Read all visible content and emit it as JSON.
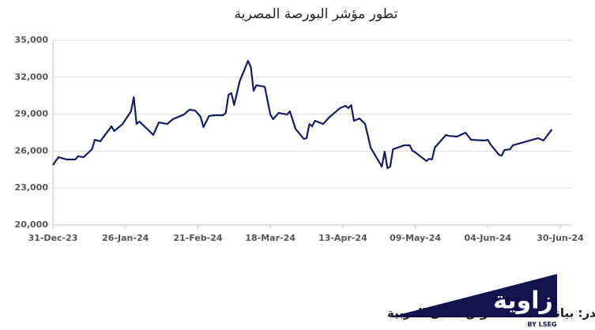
{
  "chart_data": {
    "type": "line",
    "title": "تطور مؤشر البورصة المصرية",
    "source": "المصدر: بيانات اتحاد أسواق المال العربية",
    "color": "#1b1b5c",
    "grid": true,
    "x": [
      "2023-12-31",
      "2024-01-02",
      "2024-01-05",
      "2024-01-08",
      "2024-01-09",
      "2024-01-11",
      "2024-01-14",
      "2024-01-15",
      "2024-01-17",
      "2024-01-21",
      "2024-01-22",
      "2024-01-25",
      "2024-01-28",
      "2024-01-29",
      "2024-01-30",
      "2024-01-31",
      "2024-02-03",
      "2024-02-05",
      "2024-02-07",
      "2024-02-10",
      "2024-02-12",
      "2024-02-16",
      "2024-02-18",
      "2024-02-20",
      "2024-02-22",
      "2024-02-23",
      "2024-02-25",
      "2024-02-27",
      "2024-03-01",
      "2024-03-02",
      "2024-03-03",
      "2024-03-04",
      "2024-03-05",
      "2024-03-07",
      "2024-03-10",
      "2024-03-11",
      "2024-03-12",
      "2024-03-13",
      "2024-03-16",
      "2024-03-18",
      "2024-03-19",
      "2024-03-21",
      "2024-03-24",
      "2024-03-25",
      "2024-03-27",
      "2024-03-30",
      "2024-03-31",
      "2024-04-01",
      "2024-04-02",
      "2024-04-03",
      "2024-04-06",
      "2024-04-08",
      "2024-04-12",
      "2024-04-14",
      "2024-04-15",
      "2024-04-16",
      "2024-04-17",
      "2024-04-19",
      "2024-04-21",
      "2024-04-23",
      "2024-04-27",
      "2024-04-28",
      "2024-04-29",
      "2024-04-30",
      "2024-05-01",
      "2024-05-05",
      "2024-05-07",
      "2024-05-08",
      "2024-05-09",
      "2024-05-13",
      "2024-05-14",
      "2024-05-15",
      "2024-05-16",
      "2024-05-20",
      "2024-05-21",
      "2024-05-24",
      "2024-05-27",
      "2024-05-29",
      "2024-06-03",
      "2024-06-04",
      "2024-06-05",
      "2024-06-08",
      "2024-06-09",
      "2024-06-10",
      "2024-06-12",
      "2024-06-13",
      "2024-06-22",
      "2024-06-24",
      "2024-06-27"
    ],
    "values": [
      24870,
      25510,
      25320,
      25320,
      25580,
      25510,
      26150,
      26920,
      26800,
      28010,
      27630,
      28200,
      29230,
      30380,
      28200,
      28400,
      27760,
      27310,
      28330,
      28200,
      28590,
      28970,
      29360,
      29300,
      28780,
      27950,
      28850,
      28910,
      28910,
      29100,
      30580,
      30710,
      29740,
      31670,
      33330,
      32820,
      30900,
      31350,
      31220,
      28970,
      28590,
      29100,
      28970,
      29230,
      27820,
      26990,
      27050,
      28200,
      28010,
      28460,
      28200,
      28720,
      29490,
      29680,
      29490,
      29740,
      28460,
      28650,
      28200,
      26280,
      24740,
      25960,
      24610,
      24740,
      26150,
      26470,
      26470,
      26020,
      25900,
      25190,
      25380,
      25320,
      26280,
      27310,
      27240,
      27180,
      27500,
      26920,
      26860,
      26920,
      26540,
      25700,
      25640,
      26090,
      26150,
      26470,
      27050,
      26860,
      27760
    ],
    "xlim": [
      "2023-12-31",
      "2024-06-30"
    ],
    "xticks": [
      {
        "value": "2023-12-31",
        "label": "31-Dec-23"
      },
      {
        "value": "2024-01-26",
        "label": "26-Jan-24"
      },
      {
        "value": "2024-02-21",
        "label": "21-Feb-24"
      },
      {
        "value": "2024-03-18",
        "label": "18-Mar-24"
      },
      {
        "value": "2024-04-13",
        "label": "13-Apr-24"
      },
      {
        "value": "2024-05-09",
        "label": "09-May-24"
      },
      {
        "value": "2024-06-04",
        "label": "04-Jun-24"
      },
      {
        "value": "2024-06-30",
        "label": "30-Jun-24"
      }
    ],
    "ylim": [
      20000,
      35000
    ],
    "yticks": [
      {
        "value": 20000,
        "label": "20,000"
      },
      {
        "value": 23000,
        "label": "23,000"
      },
      {
        "value": 26000,
        "label": "26,000"
      },
      {
        "value": 29000,
        "label": "29,000"
      },
      {
        "value": 32000,
        "label": "32,000"
      },
      {
        "value": 35000,
        "label": "35,000"
      }
    ]
  },
  "logo": {
    "name": "زاوية",
    "by": "BY LSEG"
  }
}
